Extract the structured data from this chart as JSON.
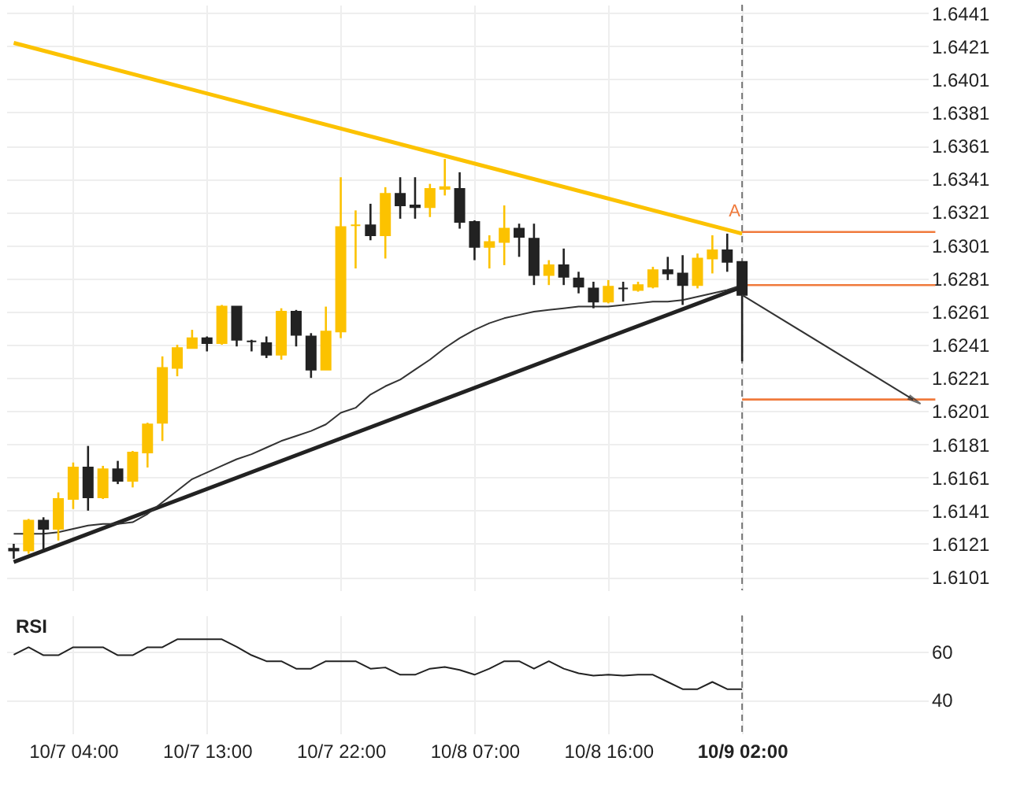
{
  "chart_data": [
    {
      "type": "candlestick",
      "categories": [
        null,
        null,
        null,
        null,
        "10/7 04:00",
        null,
        null,
        null,
        null,
        null,
        null,
        null,
        null,
        "10/7 13:00",
        null,
        null,
        null,
        null,
        null,
        null,
        null,
        null,
        "10/7 22:00",
        null,
        null,
        null,
        null,
        null,
        null,
        null,
        null,
        "10/8 07:00",
        null,
        null,
        null,
        null,
        null,
        null,
        null,
        null,
        "10/8 16:00",
        null,
        null,
        null,
        null,
        null,
        null,
        null,
        null,
        "10/9 02:00",
        null,
        null,
        null,
        null,
        null,
        null,
        null,
        null,
        null,
        null,
        null,
        null
      ],
      "ohlc": [
        [
          1.6117,
          1.6121,
          1.6112,
          1.6118
        ],
        [
          1.6117,
          1.6136,
          1.6115,
          1.6135
        ],
        [
          1.6135,
          1.6137,
          1.6116,
          1.613
        ],
        [
          1.613,
          1.6152,
          1.6123,
          1.6148
        ],
        [
          1.6148,
          1.617,
          1.6142,
          1.6167
        ],
        [
          1.6167,
          1.618,
          1.6141,
          1.6149
        ],
        [
          1.6149,
          1.6168,
          1.6148,
          1.6166
        ],
        [
          1.6166,
          1.6171,
          1.6157,
          1.6159
        ],
        [
          1.6159,
          1.6177,
          1.6155,
          1.6176
        ],
        [
          1.6176,
          1.6194,
          1.6167,
          1.6193
        ],
        [
          1.6194,
          1.6234,
          1.6183,
          1.6227
        ],
        [
          1.6227,
          1.6241,
          1.6222,
          1.6239
        ],
        [
          1.6239,
          1.625,
          1.6239,
          1.6245
        ],
        [
          1.6245,
          1.6246,
          1.6237,
          1.6242
        ],
        [
          1.6242,
          1.6265,
          1.6241,
          1.6264
        ],
        [
          1.6264,
          1.6264,
          1.624,
          1.6244
        ],
        [
          1.6243,
          1.6244,
          1.6237,
          1.6243
        ],
        [
          1.6242,
          1.6246,
          1.6233,
          1.6235
        ],
        [
          1.6235,
          1.6263,
          1.6232,
          1.6261
        ],
        [
          1.6261,
          1.6262,
          1.624,
          1.6247
        ],
        [
          1.6246,
          1.6248,
          1.6221,
          1.6226
        ],
        [
          1.6226,
          1.6264,
          1.6226,
          1.6249
        ],
        [
          1.6249,
          1.6342,
          1.6245,
          1.6312
        ],
        [
          1.6313,
          1.6322,
          1.6287,
          1.6313
        ],
        [
          1.6313,
          1.6326,
          1.6304,
          1.6307
        ],
        [
          1.6307,
          1.6336,
          1.6293,
          1.6332
        ],
        [
          1.6332,
          1.6342,
          1.6317,
          1.6325
        ],
        [
          1.6325,
          1.6342,
          1.6317,
          1.6324
        ],
        [
          1.6324,
          1.6338,
          1.6318,
          1.6335
        ],
        [
          1.6335,
          1.6353,
          1.6331,
          1.6336
        ],
        [
          1.6335,
          1.6345,
          1.6311,
          1.6315
        ],
        [
          1.6315,
          1.6316,
          1.6292,
          1.63
        ],
        [
          1.63,
          1.6307,
          1.6287,
          1.6303
        ],
        [
          1.6303,
          1.6325,
          1.6289,
          1.6311
        ],
        [
          1.6311,
          1.6314,
          1.6294,
          1.6306
        ],
        [
          1.6305,
          1.6314,
          1.6277,
          1.6283
        ],
        [
          1.6283,
          1.6292,
          1.6277,
          1.6289
        ],
        [
          1.6289,
          1.6299,
          1.6277,
          1.6282
        ],
        [
          1.6281,
          1.6285,
          1.6272,
          1.6276
        ],
        [
          1.6275,
          1.6279,
          1.6263,
          1.6267
        ],
        [
          1.6267,
          1.628,
          1.6266,
          1.6276
        ],
        [
          1.6275,
          1.6279,
          1.6267,
          1.6275
        ],
        [
          1.6274,
          1.6279,
          1.6273,
          1.6277
        ],
        [
          1.6276,
          1.6288,
          1.6275,
          1.6286
        ],
        [
          1.6286,
          1.6294,
          1.628,
          1.6284
        ],
        [
          1.6284,
          1.6295,
          1.6265,
          1.6277
        ],
        [
          1.6277,
          1.6296,
          1.6275,
          1.6293
        ],
        [
          1.6293,
          1.6307,
          1.6284,
          1.6298
        ],
        [
          1.6298,
          1.6308,
          1.6285,
          1.6291
        ],
        [
          1.6291,
          1.6291,
          1.6231,
          1.6271
        ],
        null,
        null,
        null,
        null,
        null,
        null,
        null,
        null,
        null,
        null,
        null,
        null
      ],
      "colors": [
        "#222222",
        "#fcc200",
        "#222222",
        "#fcc200",
        "#fcc200",
        "#222222",
        "#fcc200",
        "#222222",
        "#fcc200",
        "#fcc200",
        "#fcc200",
        "#fcc200",
        "#fcc200",
        "#222222",
        "#fcc200",
        "#222222",
        "#222222",
        "#222222",
        "#fcc200",
        "#222222",
        "#222222",
        "#fcc200",
        "#fcc200",
        "#fcc200",
        "#222222",
        "#fcc200",
        "#222222",
        "#222222",
        "#fcc200",
        "#fcc200",
        "#222222",
        "#222222",
        "#fcc200",
        "#fcc200",
        "#222222",
        "#222222",
        "#fcc200",
        "#222222",
        "#222222",
        "#222222",
        "#fcc200",
        "#222222",
        "#fcc200",
        "#fcc200",
        "#222222",
        "#222222",
        "#fcc200",
        "#fcc200",
        "#222222",
        "#222222",
        null,
        null,
        null,
        null,
        null,
        null,
        null,
        null,
        null,
        null,
        null,
        null
      ],
      "series": [
        {
          "type": "line",
          "color": "#fcc200",
          "values": [
            1.6423,
            null,
            null,
            null,
            null,
            null,
            null,
            null,
            null,
            null,
            null,
            null,
            null,
            null,
            null,
            null,
            null,
            null,
            null,
            null,
            null,
            null,
            null,
            null,
            null,
            null,
            null,
            null,
            null,
            null,
            null,
            null,
            null,
            null,
            null,
            null,
            null,
            null,
            null,
            null,
            null,
            null,
            null,
            null,
            null,
            null,
            null,
            null,
            null,
            1.6308,
            null,
            null,
            null,
            null,
            null,
            null,
            null,
            null,
            null,
            null,
            null,
            null
          ]
        },
        {
          "type": "line",
          "color": "#222222",
          "values": [
            1.611,
            null,
            null,
            null,
            null,
            null,
            null,
            null,
            null,
            null,
            null,
            null,
            null,
            null,
            null,
            null,
            null,
            null,
            null,
            null,
            null,
            null,
            null,
            null,
            null,
            null,
            null,
            null,
            null,
            null,
            null,
            null,
            null,
            null,
            null,
            null,
            null,
            null,
            null,
            null,
            null,
            null,
            null,
            null,
            null,
            null,
            null,
            null,
            null,
            1.6276,
            null,
            null,
            null,
            null,
            null,
            null,
            null,
            null,
            null,
            null,
            null,
            null
          ]
        },
        {
          "type": "line",
          "color": "#333333",
          "values": [
            1.6127,
            1.6127,
            1.6127,
            1.6128,
            1.613,
            1.6132,
            1.6133,
            1.6133,
            1.6134,
            1.6139,
            1.6146,
            1.6153,
            1.616,
            1.6164,
            1.6168,
            1.6172,
            1.6175,
            1.6179,
            1.6183,
            1.6186,
            1.6189,
            1.6193,
            1.62,
            1.6203,
            1.6211,
            1.6216,
            1.622,
            1.6226,
            1.6232,
            1.6239,
            1.6245,
            1.625,
            1.6254,
            1.6257,
            1.6259,
            1.6261,
            1.6262,
            1.6263,
            1.6264,
            1.6264,
            1.6264,
            1.6265,
            1.6266,
            1.6267,
            1.6267,
            1.6268,
            1.627,
            1.6272,
            1.6274,
            1.6277,
            null,
            null,
            null,
            null,
            null,
            null,
            null,
            null,
            null,
            null,
            null,
            null
          ]
        }
      ],
      "ylim": [
        1.6093,
        1.6446
      ],
      "yticks": [
        1.6101,
        1.6121,
        1.6141,
        1.6161,
        1.6181,
        1.6201,
        1.6221,
        1.6241,
        1.6261,
        1.6281,
        1.6301,
        1.6321,
        1.6341,
        1.6361,
        1.6381,
        1.6401,
        1.6421,
        1.6441
      ],
      "grid": true,
      "tick_labels": "y",
      "ref_lines": [
        {
          "axis": "x",
          "value": "10/9 02:00",
          "color": "#777777",
          "line_style": "dashed"
        },
        {
          "axis": "y",
          "value": 1.6309,
          "color": "#f07a3c"
        },
        {
          "axis": "y",
          "value": 1.6277,
          "color": "#f07a3c"
        },
        {
          "axis": "y",
          "value": 1.6208,
          "color": "#f07a3c"
        }
      ],
      "annotations": [
        {
          "text": "A",
          "y": 1.6311
        }
      ]
    },
    {
      "type": "line",
      "title": "RSI",
      "categories": [
        null,
        null,
        null,
        null,
        "10/7 04:00",
        null,
        null,
        null,
        null,
        null,
        null,
        null,
        null,
        "10/7 13:00",
        null,
        null,
        null,
        null,
        null,
        null,
        null,
        null,
        "10/7 22:00",
        null,
        null,
        null,
        null,
        null,
        null,
        null,
        null,
        "10/8 07:00",
        null,
        null,
        null,
        null,
        null,
        null,
        null,
        null,
        "10/8 16:00",
        null,
        null,
        null,
        null,
        null,
        null,
        null,
        null,
        "10/9 02:00",
        null,
        null,
        null,
        null,
        null,
        null,
        null,
        null,
        null,
        null,
        null,
        null
      ],
      "series": [
        {
          "color": "#222222",
          "values": [
            58.7,
            61.8,
            58.5,
            58.5,
            61.8,
            61.8,
            61.8,
            58.5,
            58.5,
            61.8,
            61.8,
            65.1,
            65.1,
            65.1,
            65.1,
            62,
            58.5,
            56,
            56,
            52.9,
            52.9,
            56,
            56,
            56,
            52.9,
            53.4,
            50.4,
            50.4,
            52.9,
            53.6,
            52.4,
            50.4,
            52.9,
            56,
            56,
            52.9,
            56,
            52.9,
            51,
            50,
            50.4,
            50,
            50.4,
            50.4,
            47.4,
            44.4,
            44.4,
            47.4,
            44.4,
            44.4,
            null,
            null,
            null,
            null,
            null,
            null,
            null,
            null,
            null,
            null,
            null,
            null
          ]
        }
      ],
      "ylim": [
        26,
        75
      ],
      "yticks": [
        40,
        60
      ],
      "grid": true,
      "ref_lines": [
        {
          "axis": "x",
          "value": "10/9 02:00",
          "color": "#777777",
          "line_style": "dashed"
        }
      ]
    }
  ]
}
